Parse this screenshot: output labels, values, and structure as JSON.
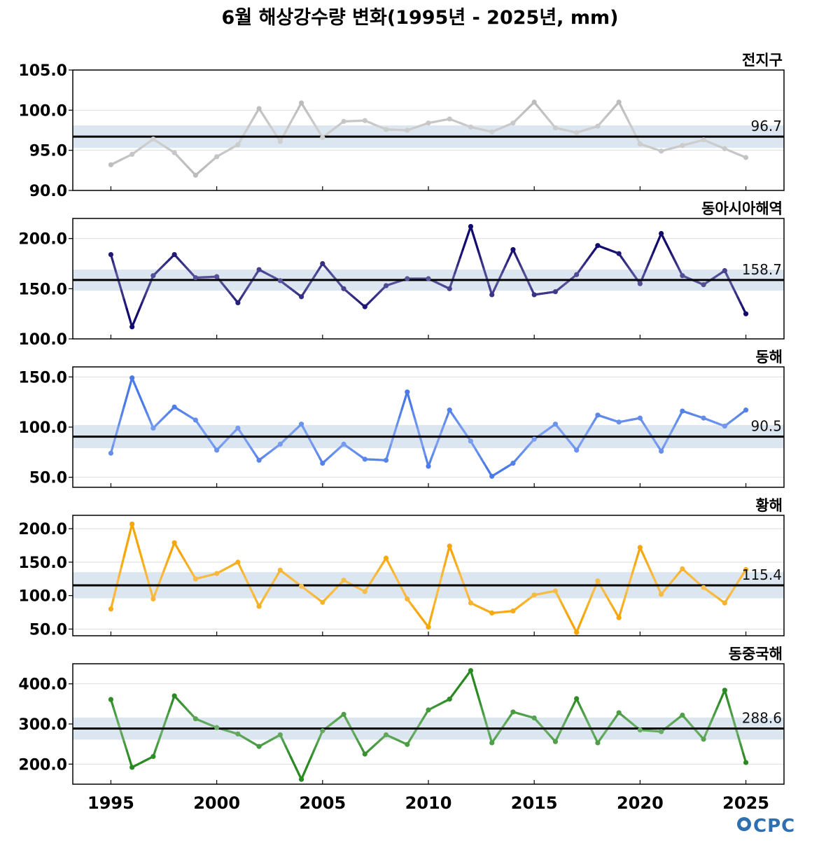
{
  "title": "6월 해상강수량 변화(1995년 - 2025년, mm)",
  "logo": "OCPC",
  "colors": {
    "band": "#dbe6f1",
    "mean_line": "#000000",
    "grid": "#dddddd"
  },
  "chart_data": [
    {
      "type": "line",
      "name": "전지구",
      "color": "#bcbcbc",
      "mean": 96.7,
      "mean_label": "96.7",
      "band": [
        95.3,
        98.1
      ],
      "ylim": [
        90.0,
        105.0
      ],
      "yticks": [
        90.0,
        95.0,
        100.0,
        105.0
      ],
      "ytick_labels": [
        "90.0",
        "95.0",
        "100.0",
        "105.0"
      ],
      "x": [
        1995,
        1996,
        1997,
        1998,
        1999,
        2000,
        2001,
        2002,
        2003,
        2004,
        2005,
        2006,
        2007,
        2008,
        2009,
        2010,
        2011,
        2012,
        2013,
        2014,
        2015,
        2016,
        2017,
        2018,
        2019,
        2020,
        2021,
        2022,
        2023,
        2024,
        2025
      ],
      "values": [
        93.2,
        94.5,
        96.4,
        94.7,
        91.9,
        94.2,
        95.7,
        100.2,
        96.1,
        100.9,
        96.6,
        98.6,
        98.7,
        97.6,
        97.5,
        98.4,
        98.9,
        97.9,
        97.3,
        98.4,
        101.0,
        97.8,
        97.2,
        98.0,
        101.0,
        95.8,
        94.9,
        95.6,
        96.3,
        95.2,
        94.1
      ]
    },
    {
      "type": "line",
      "name": "동아시아해역",
      "color": "#120a6e",
      "mean": 158.7,
      "mean_label": "158.7",
      "band": [
        148.0,
        169.0
      ],
      "ylim": [
        100.0,
        220.0
      ],
      "yticks": [
        100.0,
        150.0,
        200.0
      ],
      "ytick_labels": [
        "100.0",
        "150.0",
        "200.0"
      ],
      "x": [
        1995,
        1996,
        1997,
        1998,
        1999,
        2000,
        2001,
        2002,
        2003,
        2004,
        2005,
        2006,
        2007,
        2008,
        2009,
        2010,
        2011,
        2012,
        2013,
        2014,
        2015,
        2016,
        2017,
        2018,
        2019,
        2020,
        2021,
        2022,
        2023,
        2024,
        2025
      ],
      "values": [
        184,
        112,
        163,
        184,
        161,
        162,
        136,
        169,
        158,
        142,
        175,
        150,
        132,
        153,
        160,
        160,
        150,
        212,
        144,
        189,
        144,
        147,
        164,
        193,
        185,
        155,
        205,
        163,
        154,
        168,
        125
      ]
    },
    {
      "type": "line",
      "name": "동해",
      "color": "#4a7ae8",
      "mean": 90.5,
      "mean_label": "90.5",
      "band": [
        79.0,
        102.0
      ],
      "ylim": [
        40.0,
        160.0
      ],
      "yticks": [
        50.0,
        100.0,
        150.0
      ],
      "ytick_labels": [
        "50.0",
        "100.0",
        "150.0"
      ],
      "x": [
        1995,
        1996,
        1997,
        1998,
        1999,
        2000,
        2001,
        2002,
        2003,
        2004,
        2005,
        2006,
        2007,
        2008,
        2009,
        2010,
        2011,
        2012,
        2013,
        2014,
        2015,
        2016,
        2017,
        2018,
        2019,
        2020,
        2021,
        2022,
        2023,
        2024,
        2025
      ],
      "values": [
        74,
        149,
        99,
        120,
        107,
        77,
        99,
        67,
        83,
        103,
        64,
        83,
        68,
        67,
        135,
        61,
        117,
        86,
        51,
        64,
        88,
        103,
        77,
        112,
        105,
        109,
        76,
        116,
        109,
        101,
        117
      ]
    },
    {
      "type": "line",
      "name": "황해",
      "color": "#f5a608",
      "mean": 115.4,
      "mean_label": "115.4",
      "band": [
        96.0,
        135.0
      ],
      "ylim": [
        40.0,
        220.0
      ],
      "yticks": [
        50.0,
        100.0,
        150.0,
        200.0
      ],
      "ytick_labels": [
        "50.0",
        "100.0",
        "150.0",
        "200.0"
      ],
      "x": [
        1995,
        1996,
        1997,
        1998,
        1999,
        2000,
        2001,
        2002,
        2003,
        2004,
        2005,
        2006,
        2007,
        2008,
        2009,
        2010,
        2011,
        2012,
        2013,
        2014,
        2015,
        2016,
        2017,
        2018,
        2019,
        2020,
        2021,
        2022,
        2023,
        2024,
        2025
      ],
      "values": [
        80,
        207,
        95,
        179,
        125,
        133,
        150,
        84,
        138,
        114,
        90,
        123,
        106,
        156,
        95,
        53,
        174,
        89,
        74,
        77,
        101,
        107,
        45,
        122,
        67,
        172,
        102,
        140,
        112,
        89,
        139
      ]
    },
    {
      "type": "line",
      "name": "동중국해",
      "color": "#2a8a22",
      "mean": 288.6,
      "mean_label": "288.6",
      "band": [
        261.0,
        316.0
      ],
      "ylim": [
        150.0,
        450.0
      ],
      "yticks": [
        200.0,
        300.0,
        400.0
      ],
      "ytick_labels": [
        "200.0",
        "300.0",
        "400.0"
      ],
      "x": [
        1995,
        1996,
        1997,
        1998,
        1999,
        2000,
        2001,
        2002,
        2003,
        2004,
        2005,
        2006,
        2007,
        2008,
        2009,
        2010,
        2011,
        2012,
        2013,
        2014,
        2015,
        2016,
        2017,
        2018,
        2019,
        2020,
        2021,
        2022,
        2023,
        2024,
        2025
      ],
      "values": [
        361,
        192,
        219,
        370,
        313,
        291,
        275,
        244,
        273,
        162,
        283,
        324,
        225,
        273,
        249,
        335,
        362,
        433,
        253,
        330,
        315,
        256,
        363,
        253,
        328,
        285,
        281,
        322,
        262,
        384,
        204
      ]
    }
  ],
  "x_axis": {
    "xlim": [
      1993.2,
      2026.8
    ],
    "ticks": [
      1995,
      2000,
      2005,
      2010,
      2015,
      2020,
      2025
    ],
    "tick_labels": [
      "1995",
      "2000",
      "2005",
      "2010",
      "2015",
      "2020",
      "2025"
    ]
  }
}
